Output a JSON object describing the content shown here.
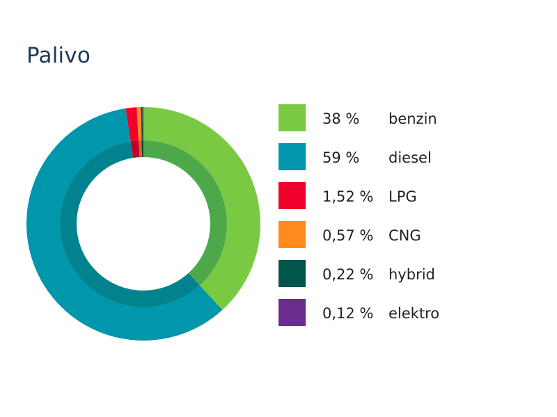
{
  "chart_data": {
    "type": "pie",
    "title": "Palivo",
    "donut": true,
    "legend_position": "right",
    "categories": [
      "benzin",
      "diesel",
      "LPG",
      "CNG",
      "hybrid",
      "elektro"
    ],
    "values": [
      38,
      59,
      1.52,
      0.57,
      0.22,
      0.12
    ],
    "value_labels": [
      "38 %",
      "59 %",
      "1,52 %",
      "0,57 %",
      "0,22 %",
      "0,12 %"
    ],
    "colors": [
      "#7ac943",
      "#0096ac",
      "#f0002a",
      "#ff8a1e",
      "#00564a",
      "#6a2c8e"
    ],
    "inner_ring_colors": [
      "#4da84a",
      "#00838e",
      "#c0002a",
      "#d06a10",
      "#003d35",
      "#4f1f6a"
    ]
  }
}
